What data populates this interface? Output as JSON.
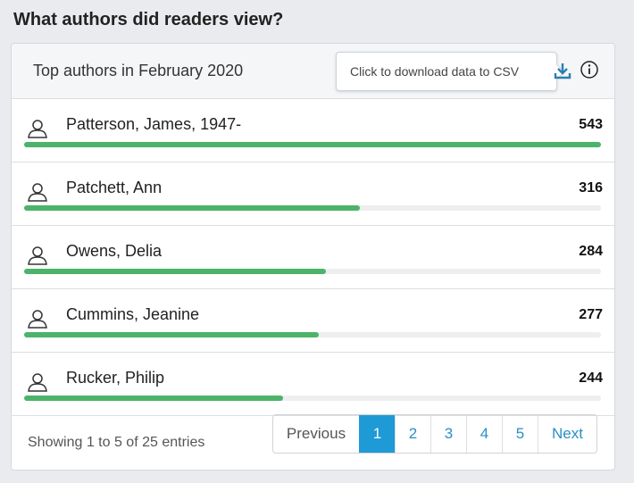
{
  "page": {
    "title": "What authors did readers view?"
  },
  "card": {
    "title": "Top authors in February 2020",
    "tooltip": "Click to download data to CSV"
  },
  "colors": {
    "bar": "#4cb36a",
    "accent": "#1e9ad6"
  },
  "authors": [
    {
      "name": "Patterson, James, 1947-",
      "count": "543",
      "value": 543
    },
    {
      "name": "Patchett, Ann",
      "count": "316",
      "value": 316
    },
    {
      "name": "Owens, Delia",
      "count": "284",
      "value": 284
    },
    {
      "name": "Cummins, Jeanine",
      "count": "277",
      "value": 277
    },
    {
      "name": "Rucker, Philip",
      "count": "244",
      "value": 244
    }
  ],
  "footer": {
    "info": "Showing 1 to 5 of 25 entries"
  },
  "pagination": {
    "previous": "Previous",
    "pages": [
      "1",
      "2",
      "3",
      "4",
      "5"
    ],
    "active": "1",
    "next": "Next"
  }
}
